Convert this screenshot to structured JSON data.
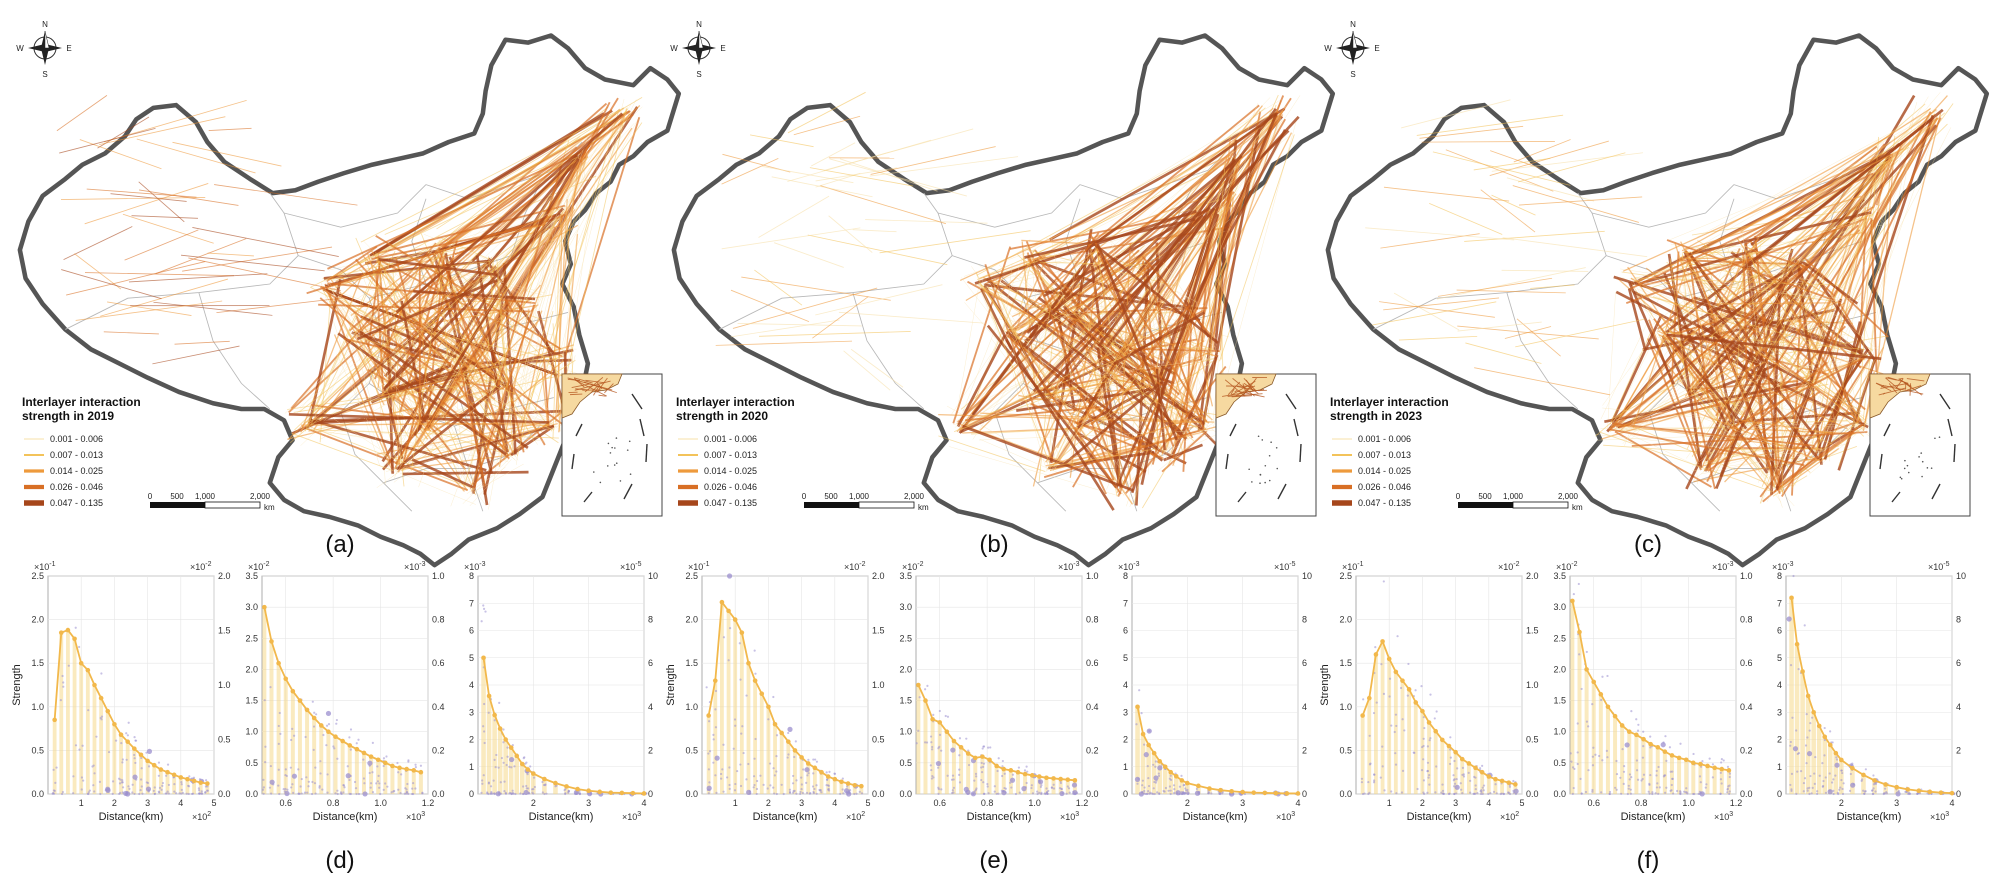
{
  "colors": {
    "map_fill": "#ffffff",
    "border": "#555555",
    "province_line": "#b8b8b8",
    "flow_scale": [
      "#f7e0a8",
      "#f3c35a",
      "#ee9a3c",
      "#d86f25",
      "#a6461b"
    ],
    "bar": "#f6d98a",
    "line": "#f2b84b",
    "scatter": "#9b8fcf"
  },
  "maps": [
    {
      "panel_label": "(a)",
      "legend_title_line1": "Interlayer interaction",
      "legend_title_line2": "strength in 2019",
      "legend_items": [
        "0.001 - 0.006",
        "0.007 - 0.013",
        "0.014 - 0.025",
        "0.026 - 0.046",
        "0.047 - 0.135"
      ],
      "compass": {
        "n": "N",
        "s": "S",
        "e": "E",
        "w": "W"
      },
      "scalebar": {
        "t0": "0",
        "t1": "500",
        "t2": "1,000",
        "t3": "2,000",
        "unit": "km"
      }
    },
    {
      "panel_label": "(b)",
      "legend_title_line1": "Interlayer interaction",
      "legend_title_line2": "strength in 2020",
      "legend_items": [
        "0.001 - 0.006",
        "0.007 - 0.013",
        "0.014 - 0.025",
        "0.026 - 0.046",
        "0.047 - 0.135"
      ],
      "compass": {
        "n": "N",
        "s": "S",
        "e": "E",
        "w": "W"
      },
      "scalebar": {
        "t0": "0",
        "t1": "500",
        "t2": "1,000",
        "t3": "2,000",
        "unit": "km"
      }
    },
    {
      "panel_label": "(c)",
      "legend_title_line1": "Interlayer interaction",
      "legend_title_line2": "strength in 2023",
      "legend_items": [
        "0.001 - 0.006",
        "0.007 - 0.013",
        "0.014 - 0.025",
        "0.026 - 0.046",
        "0.047 - 0.135"
      ],
      "compass": {
        "n": "N",
        "s": "S",
        "e": "E",
        "w": "W"
      },
      "scalebar": {
        "t0": "0",
        "t1": "500",
        "t2": "1,000",
        "t3": "2,000",
        "unit": "km"
      }
    }
  ],
  "bottom_labels": [
    "(d)",
    "(e)",
    "(f)"
  ],
  "chart_data": [
    {
      "type": "bar",
      "group": "(d)",
      "xlabel": "Distance(km)",
      "ylabel": "Strength",
      "xlim": [
        0,
        5
      ],
      "ylim": [
        0,
        2.5
      ],
      "left_ticks": [
        "0.0",
        "0.5",
        "1.0",
        "1.5",
        "2.0",
        "2.5"
      ],
      "right_ticks": [
        "0.0",
        "0.5",
        "1.0",
        "1.5",
        "2.0"
      ],
      "x_ticks": [
        "1",
        "2",
        "3",
        "4",
        "5"
      ],
      "x_tick_values": [
        1,
        2,
        3,
        4,
        5
      ],
      "left_exp": "×10",
      "left_exp_sup": "-1",
      "right_exp": "×10",
      "right_exp_sup": "-2",
      "x_exp": "×10",
      "x_exp_sup": "2",
      "x": [
        0.2,
        0.4,
        0.6,
        0.8,
        1.0,
        1.2,
        1.4,
        1.6,
        1.8,
        2.0,
        2.2,
        2.4,
        2.6,
        2.8,
        3.0,
        3.2,
        3.4,
        3.6,
        3.8,
        4.0,
        4.2,
        4.4,
        4.6,
        4.8
      ],
      "values": [
        0.85,
        1.85,
        1.88,
        1.78,
        1.5,
        1.42,
        1.25,
        1.1,
        0.95,
        0.8,
        0.68,
        0.6,
        0.52,
        0.45,
        0.38,
        0.33,
        0.28,
        0.25,
        0.22,
        0.19,
        0.17,
        0.15,
        0.13,
        0.12
      ]
    },
    {
      "type": "bar",
      "group": "(d)",
      "xlabel": "Distance(km)",
      "ylabel": "",
      "xlim": [
        0.5,
        1.2
      ],
      "ylim": [
        0,
        3.5
      ],
      "left_ticks": [
        "0.0",
        "0.5",
        "1.0",
        "1.5",
        "2.0",
        "2.5",
        "3.0",
        "3.5"
      ],
      "right_ticks": [
        "0.0",
        "0.2",
        "0.4",
        "0.6",
        "0.8",
        "1.0"
      ],
      "x_ticks": [
        "0.6",
        "0.8",
        "1.0",
        "1.2"
      ],
      "x_tick_values": [
        0.6,
        0.8,
        1.0,
        1.2
      ],
      "left_exp": "×10",
      "left_exp_sup": "-2",
      "right_exp": "×10",
      "right_exp_sup": "-3",
      "x_exp": "×10",
      "x_exp_sup": "3",
      "x": [
        0.51,
        0.54,
        0.57,
        0.6,
        0.63,
        0.66,
        0.69,
        0.72,
        0.75,
        0.78,
        0.81,
        0.84,
        0.87,
        0.9,
        0.93,
        0.96,
        0.99,
        1.02,
        1.05,
        1.08,
        1.11,
        1.14,
        1.17
      ],
      "values": [
        3.0,
        2.45,
        2.1,
        1.85,
        1.65,
        1.5,
        1.35,
        1.22,
        1.1,
        1.0,
        0.92,
        0.85,
        0.78,
        0.72,
        0.66,
        0.6,
        0.55,
        0.5,
        0.45,
        0.42,
        0.4,
        0.38,
        0.35
      ]
    },
    {
      "type": "bar",
      "group": "(d)",
      "xlabel": "Distance(km)",
      "ylabel": "",
      "xlim": [
        1.0,
        4.0
      ],
      "ylim": [
        0,
        8
      ],
      "left_ticks": [
        "0",
        "1",
        "2",
        "3",
        "4",
        "5",
        "6",
        "7",
        "8"
      ],
      "right_ticks": [
        "0",
        "2",
        "4",
        "6",
        "8",
        "10"
      ],
      "x_ticks": [
        "2",
        "3",
        "4"
      ],
      "x_tick_values": [
        2,
        3,
        4
      ],
      "left_exp": "×10",
      "left_exp_sup": "-3",
      "right_exp": "×10",
      "right_exp_sup": "-5",
      "x_exp": "×10",
      "x_exp_sup": "3",
      "x": [
        1.1,
        1.2,
        1.3,
        1.4,
        1.5,
        1.6,
        1.7,
        1.8,
        1.9,
        2.0,
        2.2,
        2.4,
        2.6,
        2.8,
        3.0,
        3.2,
        3.4,
        3.6,
        3.8,
        4.0
      ],
      "values": [
        5.0,
        3.6,
        2.9,
        2.4,
        2.0,
        1.7,
        1.4,
        1.1,
        0.9,
        0.75,
        0.55,
        0.4,
        0.28,
        0.18,
        0.12,
        0.08,
        0.05,
        0.04,
        0.03,
        0.02
      ]
    },
    {
      "type": "bar",
      "group": "(e)",
      "xlabel": "Distance(km)",
      "ylabel": "Strength",
      "xlim": [
        0,
        5
      ],
      "ylim": [
        0,
        2.5
      ],
      "left_ticks": [
        "0.0",
        "0.5",
        "1.0",
        "1.5",
        "2.0",
        "2.5"
      ],
      "right_ticks": [
        "0.0",
        "0.5",
        "1.0",
        "1.5",
        "2.0"
      ],
      "x_ticks": [
        "1",
        "2",
        "3",
        "4",
        "5"
      ],
      "x_tick_values": [
        1,
        2,
        3,
        4,
        5
      ],
      "left_exp": "×10",
      "left_exp_sup": "-1",
      "right_exp": "×10",
      "right_exp_sup": "-2",
      "x_exp": "×10",
      "x_exp_sup": "2",
      "x": [
        0.2,
        0.4,
        0.6,
        0.8,
        1.0,
        1.2,
        1.4,
        1.6,
        1.8,
        2.0,
        2.2,
        2.4,
        2.6,
        2.8,
        3.0,
        3.2,
        3.4,
        3.6,
        3.8,
        4.0,
        4.2,
        4.4,
        4.6,
        4.8
      ],
      "values": [
        0.9,
        1.3,
        2.2,
        2.1,
        2.0,
        1.85,
        1.5,
        1.3,
        1.15,
        1.0,
        0.8,
        0.7,
        0.6,
        0.5,
        0.42,
        0.35,
        0.3,
        0.25,
        0.2,
        0.17,
        0.14,
        0.12,
        0.1,
        0.09
      ]
    },
    {
      "type": "bar",
      "group": "(e)",
      "xlabel": "Distance(km)",
      "ylabel": "",
      "xlim": [
        0.5,
        1.2
      ],
      "ylim": [
        0,
        3.5
      ],
      "left_ticks": [
        "0.0",
        "0.5",
        "1.0",
        "1.5",
        "2.0",
        "2.5",
        "3.0",
        "3.5"
      ],
      "right_ticks": [
        "0.0",
        "0.2",
        "0.4",
        "0.6",
        "0.8",
        "1.0"
      ],
      "x_ticks": [
        "0.6",
        "0.8",
        "1.0",
        "1.2"
      ],
      "x_tick_values": [
        0.6,
        0.8,
        1.0,
        1.2
      ],
      "left_exp": "×10",
      "left_exp_sup": "-2",
      "right_exp": "×10",
      "right_exp_sup": "-3",
      "x_exp": "×10",
      "x_exp_sup": "3",
      "x": [
        0.51,
        0.54,
        0.57,
        0.6,
        0.63,
        0.66,
        0.69,
        0.72,
        0.75,
        0.78,
        0.81,
        0.84,
        0.87,
        0.9,
        0.93,
        0.96,
        0.99,
        1.02,
        1.05,
        1.08,
        1.11,
        1.14,
        1.17
      ],
      "values": [
        1.75,
        1.5,
        1.2,
        1.15,
        1.0,
        0.85,
        0.75,
        0.65,
        0.58,
        0.6,
        0.55,
        0.45,
        0.4,
        0.38,
        0.35,
        0.32,
        0.3,
        0.28,
        0.26,
        0.25,
        0.24,
        0.23,
        0.22
      ]
    },
    {
      "type": "bar",
      "group": "(e)",
      "xlabel": "Distance(km)",
      "ylabel": "",
      "xlim": [
        1.0,
        4.0
      ],
      "ylim": [
        0,
        8
      ],
      "left_ticks": [
        "0",
        "1",
        "2",
        "3",
        "4",
        "5",
        "6",
        "7",
        "8"
      ],
      "right_ticks": [
        "0",
        "2",
        "4",
        "6",
        "8",
        "10"
      ],
      "x_ticks": [
        "2",
        "3",
        "4"
      ],
      "x_tick_values": [
        2,
        3,
        4
      ],
      "left_exp": "×10",
      "left_exp_sup": "-3",
      "right_exp": "×10",
      "right_exp_sup": "-5",
      "x_exp": "×10",
      "x_exp_sup": "3",
      "x": [
        1.1,
        1.2,
        1.3,
        1.4,
        1.5,
        1.6,
        1.7,
        1.8,
        1.9,
        2.0,
        2.2,
        2.4,
        2.6,
        2.8,
        3.0,
        3.2,
        3.4,
        3.6,
        3.8,
        4.0
      ],
      "values": [
        3.2,
        2.2,
        1.8,
        1.5,
        1.2,
        1.0,
        0.8,
        0.65,
        0.5,
        0.4,
        0.3,
        0.2,
        0.14,
        0.1,
        0.07,
        0.05,
        0.04,
        0.03,
        0.02,
        0.02
      ]
    },
    {
      "type": "bar",
      "group": "(f)",
      "xlabel": "Distance(km)",
      "ylabel": "Strength",
      "xlim": [
        0,
        5
      ],
      "ylim": [
        0,
        2.5
      ],
      "left_ticks": [
        "0.0",
        "0.5",
        "1.0",
        "1.5",
        "2.0",
        "2.5"
      ],
      "right_ticks": [
        "0.0",
        "0.5",
        "1.0",
        "1.5",
        "2.0"
      ],
      "x_ticks": [
        "1",
        "2",
        "3",
        "4",
        "5"
      ],
      "x_tick_values": [
        1,
        2,
        3,
        4,
        5
      ],
      "left_exp": "×10",
      "left_exp_sup": "-1",
      "right_exp": "×10",
      "right_exp_sup": "-2",
      "x_exp": "×10",
      "x_exp_sup": "2",
      "x": [
        0.2,
        0.4,
        0.6,
        0.8,
        1.0,
        1.2,
        1.4,
        1.6,
        1.8,
        2.0,
        2.2,
        2.4,
        2.6,
        2.8,
        3.0,
        3.2,
        3.4,
        3.6,
        3.8,
        4.0,
        4.2,
        4.4,
        4.6,
        4.8
      ],
      "values": [
        0.9,
        1.1,
        1.6,
        1.75,
        1.55,
        1.4,
        1.3,
        1.2,
        1.05,
        0.95,
        0.82,
        0.72,
        0.62,
        0.55,
        0.48,
        0.4,
        0.35,
        0.3,
        0.25,
        0.2,
        0.17,
        0.15,
        0.13,
        0.11
      ]
    },
    {
      "type": "bar",
      "group": "(f)",
      "xlabel": "Distance(km)",
      "ylabel": "",
      "xlim": [
        0.5,
        1.2
      ],
      "ylim": [
        0,
        3.5
      ],
      "left_ticks": [
        "0.0",
        "0.5",
        "1.0",
        "1.5",
        "2.0",
        "2.5",
        "3.0",
        "3.5"
      ],
      "right_ticks": [
        "0.0",
        "0.2",
        "0.4",
        "0.6",
        "0.8",
        "1.0"
      ],
      "x_ticks": [
        "0.6",
        "0.8",
        "1.0",
        "1.2"
      ],
      "x_tick_values": [
        0.6,
        0.8,
        1.0,
        1.2
      ],
      "left_exp": "×10",
      "left_exp_sup": "-2",
      "right_exp": "×10",
      "right_exp_sup": "-3",
      "x_exp": "×10",
      "x_exp_sup": "3",
      "x": [
        0.51,
        0.54,
        0.57,
        0.6,
        0.63,
        0.66,
        0.69,
        0.72,
        0.75,
        0.78,
        0.81,
        0.84,
        0.87,
        0.9,
        0.93,
        0.96,
        0.99,
        1.02,
        1.05,
        1.08,
        1.11,
        1.14,
        1.17
      ],
      "values": [
        3.1,
        2.6,
        2.0,
        1.8,
        1.6,
        1.4,
        1.25,
        1.1,
        1.0,
        0.95,
        0.88,
        0.8,
        0.75,
        0.68,
        0.62,
        0.58,
        0.55,
        0.5,
        0.48,
        0.45,
        0.42,
        0.4,
        0.38
      ]
    },
    {
      "type": "bar",
      "group": "(f)",
      "xlabel": "Distance(km)",
      "ylabel": "",
      "xlim": [
        1.0,
        4.0
      ],
      "ylim": [
        0,
        8
      ],
      "left_ticks": [
        "0",
        "1",
        "2",
        "3",
        "4",
        "5",
        "6",
        "7",
        "8"
      ],
      "right_ticks": [
        "0",
        "2",
        "4",
        "6",
        "8",
        "10"
      ],
      "x_ticks": [
        "2",
        "3",
        "4"
      ],
      "x_tick_values": [
        2,
        3,
        4
      ],
      "left_exp": "×10",
      "left_exp_sup": "-3",
      "right_exp": "×10",
      "right_exp_sup": "-5",
      "x_exp": "×10",
      "x_exp_sup": "3",
      "x": [
        1.1,
        1.2,
        1.3,
        1.4,
        1.5,
        1.6,
        1.7,
        1.8,
        1.9,
        2.0,
        2.2,
        2.4,
        2.6,
        2.8,
        3.0,
        3.2,
        3.4,
        3.6,
        3.8,
        4.0
      ],
      "values": [
        7.2,
        5.5,
        4.5,
        3.6,
        3.0,
        2.5,
        2.1,
        1.8,
        1.5,
        1.25,
        0.95,
        0.7,
        0.5,
        0.35,
        0.25,
        0.17,
        0.12,
        0.08,
        0.05,
        0.03
      ]
    }
  ]
}
